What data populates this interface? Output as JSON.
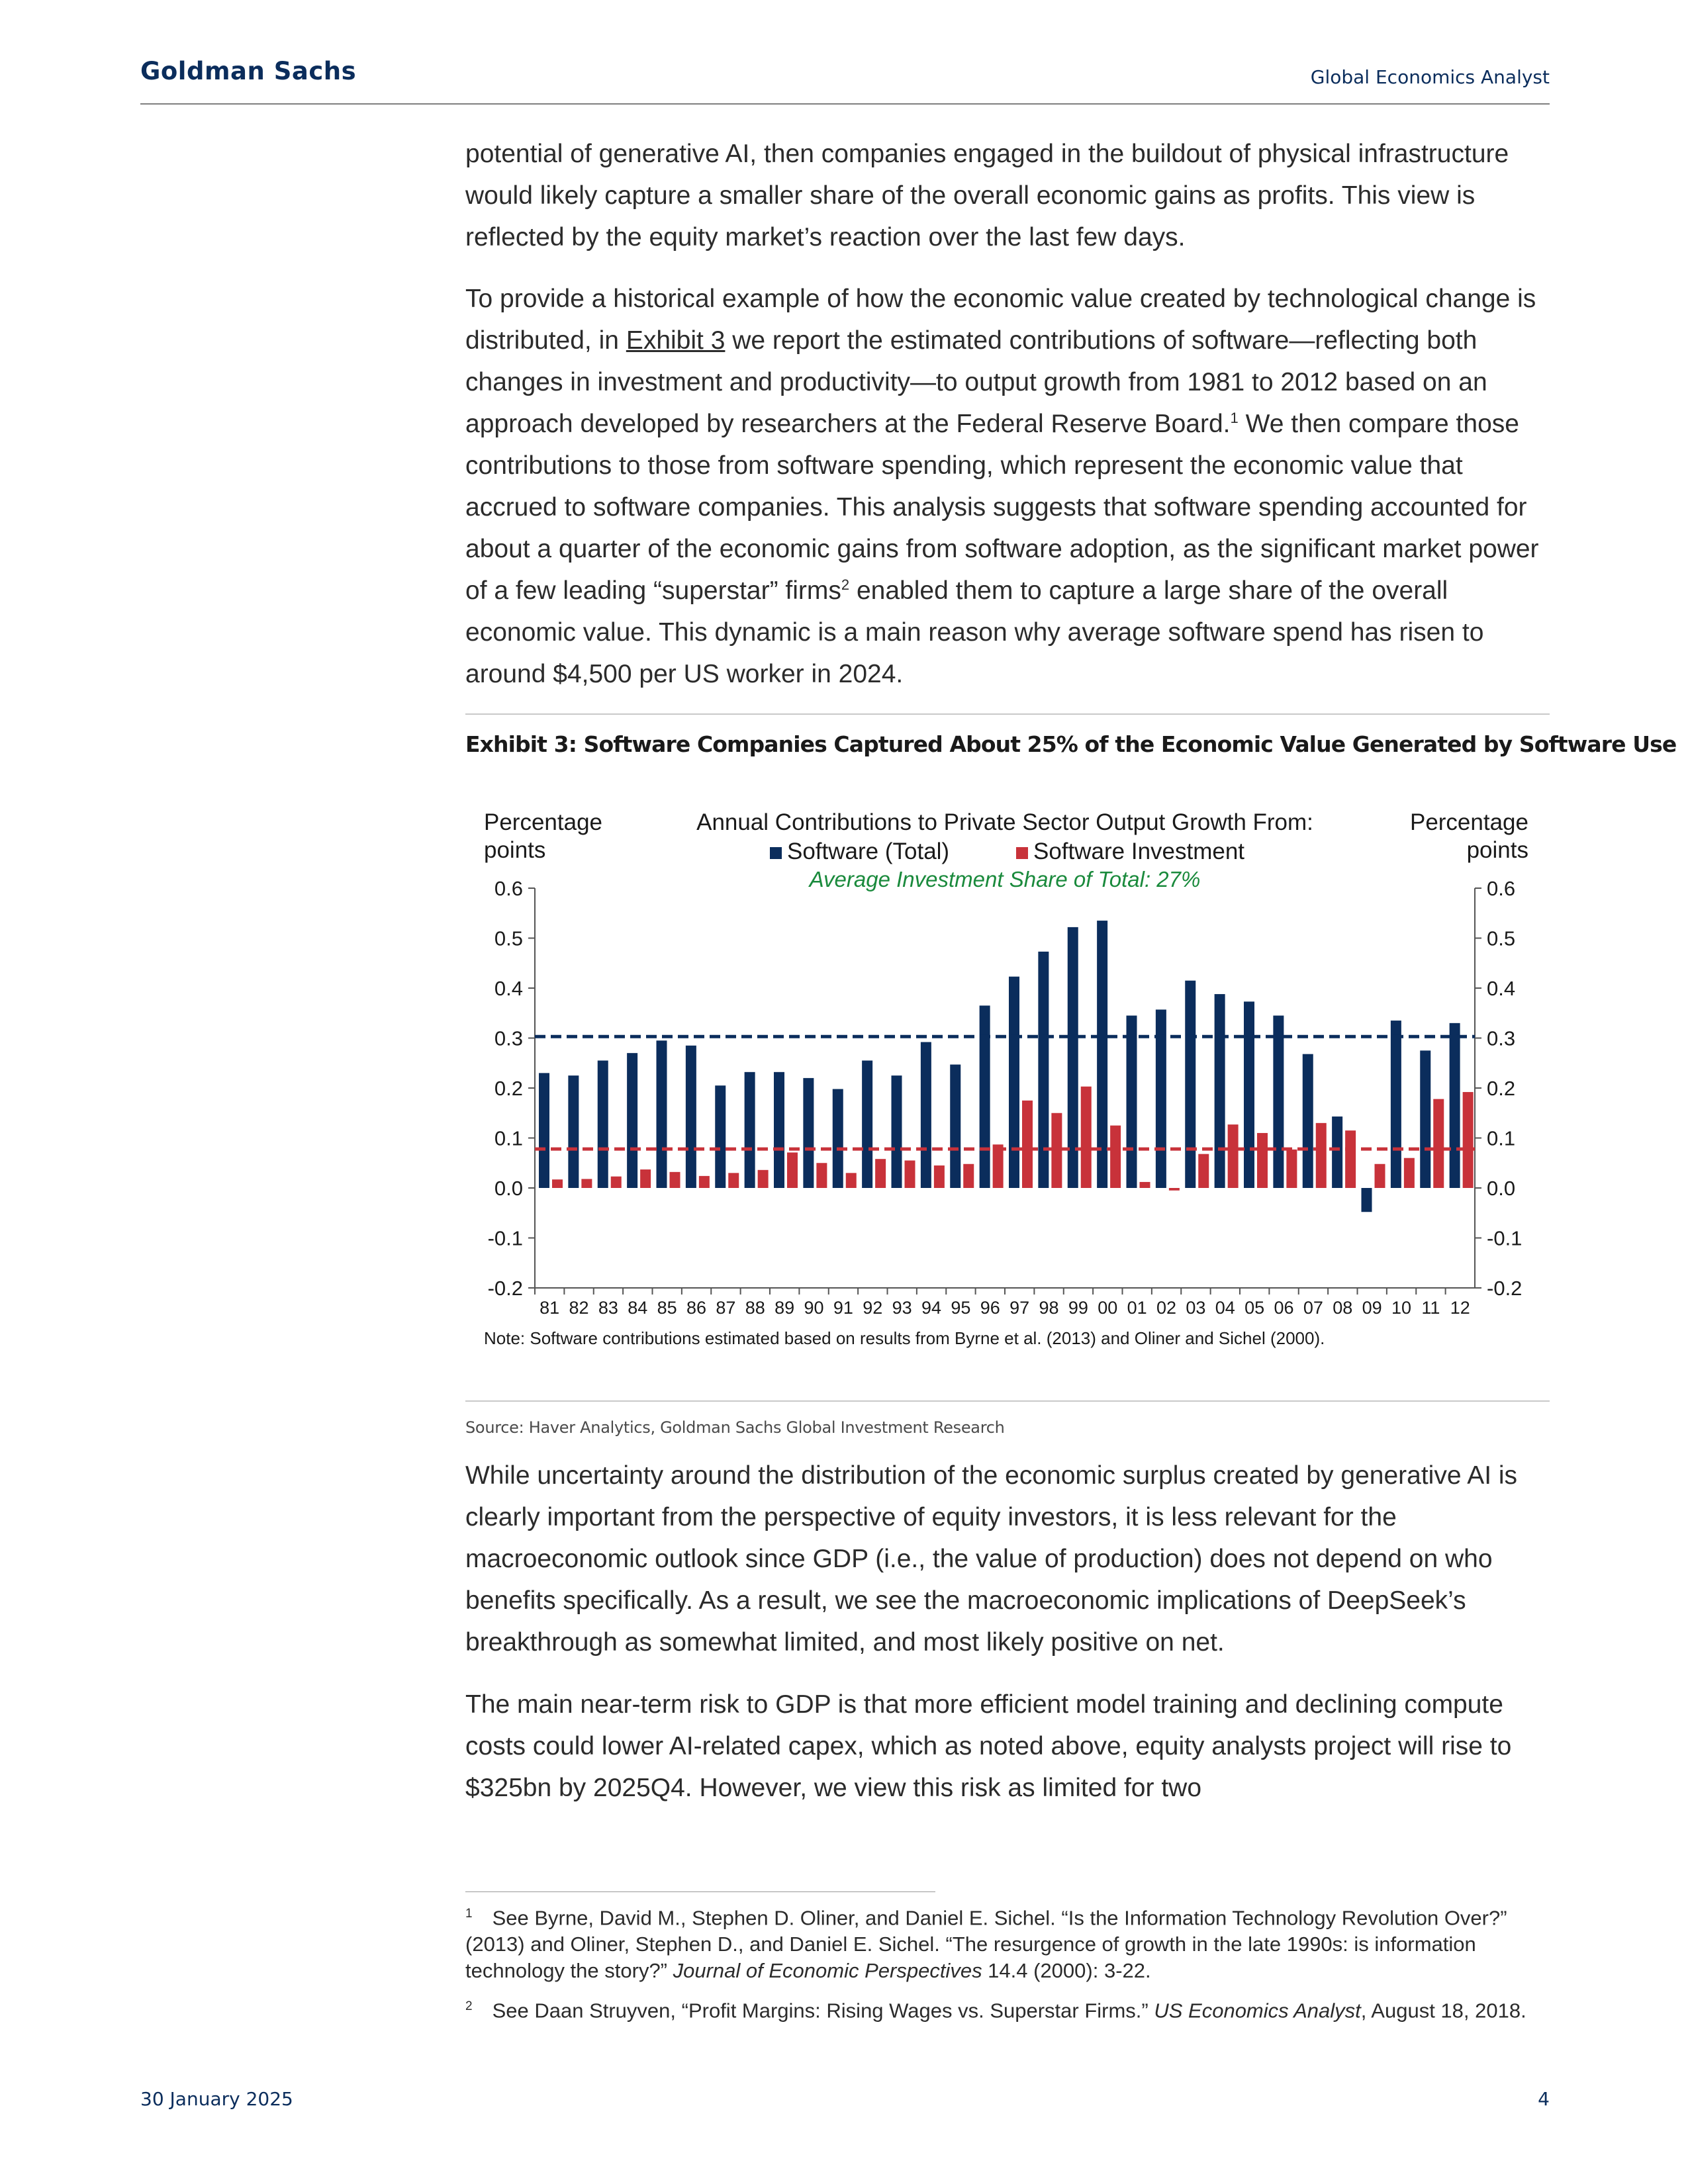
{
  "header": {
    "brand": "Goldman Sachs",
    "publication": "Global Economics Analyst"
  },
  "paragraphs": [
    {
      "text": "potential of generative AI, then companies engaged in the buildout of physical infrastructure would likely capture a smaller share of the overall economic gains as profits.  This view is reflected by the equity market’s reaction over the last few days."
    },
    {
      "part1": "To provide a historical example of how the economic value created by technological change is distributed, in ",
      "link": "Exhibit 3",
      "part2": " we report the estimated contributions of software—reflecting both changes in investment and productivity—to output growth from 1981 to 2012 based on an approach developed by researchers at the Federal Reserve Board.",
      "ref1": "1",
      "part3": " We then compare those contributions to those from software spending, which represent the economic value that accrued to software companies. This analysis suggests that software spending accounted for about a quarter of the economic gains from software adoption, as the significant market power of a few leading “superstar” firms",
      "ref2": "2",
      "part4": " enabled them to capture a large share of the overall economic value.  This dynamic is a main reason why average software spend has risen to around $4,500 per US worker in 2024."
    },
    {
      "text": "While uncertainty around the distribution of the economic surplus created by generative AI is clearly important from the perspective of equity investors, it is less relevant for the macroeconomic outlook since GDP (i.e., the value of production) does not depend on who benefits specifically.  As a result, we see the macroeconomic implications of DeepSeek’s breakthrough as somewhat limited, and most likely positive on net."
    },
    {
      "text": "The main near-term risk to GDP is that more efficient model training and declining compute costs could lower AI-related capex, which as noted above, equity analysts project will rise to $325bn by 2025Q4. However, we view this risk as limited for two"
    }
  ],
  "exhibit": {
    "title": "Exhibit 3: Software Companies Captured About 25% of the Economic Value Generated by Software Use",
    "source": "Source: Haver Analytics, Goldman Sachs Global Investment Research"
  },
  "chart_data": {
    "type": "bar",
    "title": "Annual Contributions to Private Sector Output Growth From:",
    "annotation": "Average Investment Share of Total: 27%",
    "ylabel_left": [
      "Percentage",
      "points"
    ],
    "ylabel_right": [
      "Percentage",
      "points"
    ],
    "ylim": [
      -0.2,
      0.6
    ],
    "yticks": [
      "0.6",
      "0.5",
      "0.4",
      "0.3",
      "0.2",
      "0.1",
      "0.0",
      "-0.1",
      "-0.2"
    ],
    "categories": [
      "81",
      "82",
      "83",
      "84",
      "85",
      "86",
      "87",
      "88",
      "89",
      "90",
      "91",
      "92",
      "93",
      "94",
      "95",
      "96",
      "97",
      "98",
      "99",
      "00",
      "01",
      "02",
      "03",
      "04",
      "05",
      "06",
      "07",
      "08",
      "09",
      "10",
      "11",
      "12"
    ],
    "series": [
      {
        "name": "Software (Total)",
        "color": "#0b2d5c",
        "values": [
          0.23,
          0.225,
          0.255,
          0.27,
          0.295,
          0.285,
          0.205,
          0.232,
          0.232,
          0.22,
          0.198,
          0.255,
          0.225,
          0.292,
          0.247,
          0.365,
          0.423,
          0.473,
          0.522,
          0.535,
          0.345,
          0.357,
          0.415,
          0.388,
          0.373,
          0.345,
          0.268,
          0.143,
          -0.048,
          0.335,
          0.275,
          0.33
        ]
      },
      {
        "name": "Software Investment",
        "color": "#c8323a",
        "values": [
          0.017,
          0.018,
          0.023,
          0.037,
          0.032,
          0.024,
          0.03,
          0.036,
          0.071,
          0.05,
          0.03,
          0.058,
          0.055,
          0.045,
          0.048,
          0.087,
          0.175,
          0.15,
          0.203,
          0.125,
          0.012,
          -0.005,
          0.068,
          0.127,
          0.11,
          0.077,
          0.13,
          0.115,
          0.048,
          0.06,
          0.178,
          0.192
        ]
      }
    ],
    "reference_lines": [
      {
        "series": "Software (Total)",
        "value": 0.303,
        "style": "dashed",
        "color": "#0b2d5c"
      },
      {
        "series": "Software Investment",
        "value": 0.078,
        "style": "dashed",
        "color": "#c8323a"
      }
    ],
    "note": "Note: Software contributions estimated based on results from Byrne et al. (2013) and Oliner and Sichel (2000).",
    "legend_position": "top-center",
    "grid": false
  },
  "footnotes": [
    {
      "num": "1",
      "text1": "See Byrne, David M., Stephen D. Oliner, and Daniel E. Sichel. “Is the Information Technology Revolution Over?” (2013) and Oliner, Stephen D., and Daniel E. Sichel. “The resurgence of growth in the late 1990s: is information technology the story?” ",
      "italic": "Journal of Economic Perspectives",
      "text2": " 14.4 (2000): 3-22."
    },
    {
      "num": "2",
      "text1": "See Daan Struyven, “Profit Margins: Rising Wages vs. Superstar Firms.” ",
      "italic": "US Economics Analyst",
      "text2": ", August 18, 2018."
    }
  ],
  "footer": {
    "date": "30 January 2025",
    "page": "4"
  }
}
